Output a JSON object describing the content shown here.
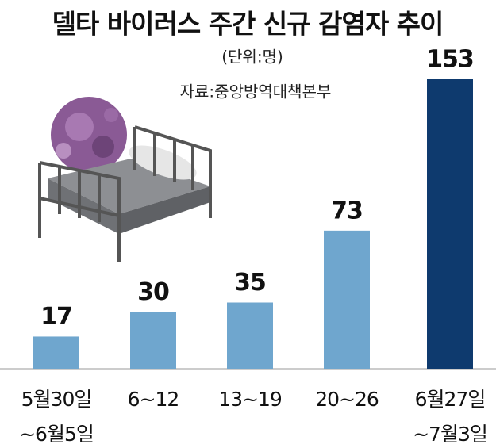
{
  "chart_data": {
    "type": "bar",
    "title": "델타 바이러스 주간 신규 감염자 추이",
    "unit_note": "(단위:명)",
    "source": "자료:중앙방역대책본부",
    "categories": [
      "5월30일\n~6월5일",
      "6~12",
      "13~19",
      "20~26",
      "6월27일\n~7월3일"
    ],
    "values": [
      17,
      30,
      35,
      73,
      153
    ],
    "colors": [
      "#6fa6ce",
      "#6fa6ce",
      "#6fa6ce",
      "#6fa6ce",
      "#0e3a6e"
    ]
  }
}
